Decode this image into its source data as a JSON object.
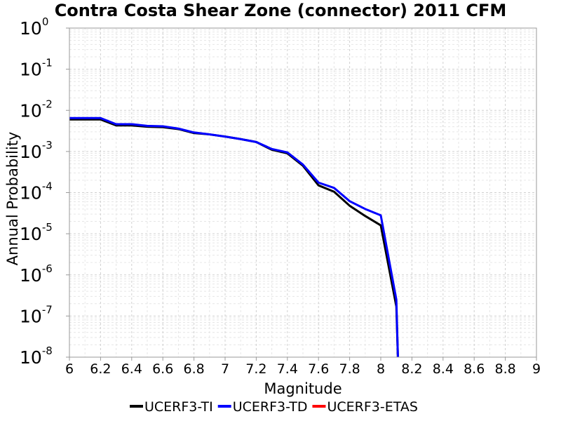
{
  "chart_data": {
    "type": "line",
    "title": "Contra Costa Shear Zone (connector) 2011 CFM",
    "xlabel": "Magnitude",
    "ylabel": "Annual Probability",
    "xlim": [
      6,
      9
    ],
    "ylim": [
      1e-08,
      1
    ],
    "yscale": "log",
    "grid": true,
    "legend_position": "bottom",
    "x_ticks": [
      "6",
      "6.2",
      "6.4",
      "6.6",
      "6.8",
      "7",
      "7.2",
      "7.4",
      "7.6",
      "7.8",
      "8",
      "8.2",
      "8.4",
      "8.6",
      "8.8",
      "9"
    ],
    "y_ticks": [
      {
        "base": "10",
        "exp": "0"
      },
      {
        "base": "10",
        "exp": "-1"
      },
      {
        "base": "10",
        "exp": "-2"
      },
      {
        "base": "10",
        "exp": "-3"
      },
      {
        "base": "10",
        "exp": "-4"
      },
      {
        "base": "10",
        "exp": "-5"
      },
      {
        "base": "10",
        "exp": "-6"
      },
      {
        "base": "10",
        "exp": "-7"
      },
      {
        "base": "10",
        "exp": "-8"
      }
    ],
    "series": [
      {
        "name": "UCERF3-TI",
        "color": "#000000",
        "x": [
          6.0,
          6.1,
          6.2,
          6.3,
          6.4,
          6.5,
          6.6,
          6.7,
          6.8,
          6.9,
          7.0,
          7.1,
          7.2,
          7.3,
          7.4,
          7.5,
          7.6,
          7.7,
          7.8,
          7.9,
          8.0,
          8.1,
          8.11
        ],
        "y": [
          0.006,
          0.006,
          0.006,
          0.0043,
          0.0043,
          0.004,
          0.0039,
          0.0035,
          0.0028,
          0.0026,
          0.0023,
          0.002,
          0.0017,
          0.0011,
          0.0009,
          0.00045,
          0.00015,
          0.000105,
          4.8e-05,
          2.7e-05,
          1.6e-05,
          1.7e-07,
          1e-08
        ]
      },
      {
        "name": "UCERF3-TD",
        "color": "#0000ff",
        "x": [
          6.0,
          6.1,
          6.2,
          6.3,
          6.4,
          6.5,
          6.6,
          6.7,
          6.8,
          6.9,
          7.0,
          7.1,
          7.2,
          7.3,
          7.4,
          7.5,
          7.6,
          7.7,
          7.8,
          7.9,
          8.0,
          8.1,
          8.11
        ],
        "y": [
          0.0065,
          0.0065,
          0.0065,
          0.0046,
          0.0046,
          0.0042,
          0.0041,
          0.0036,
          0.0029,
          0.0026,
          0.0023,
          0.002,
          0.0017,
          0.00115,
          0.00095,
          0.00048,
          0.000175,
          0.00013,
          6.2e-05,
          4e-05,
          2.8e-05,
          2.5e-07,
          1e-08
        ]
      },
      {
        "name": "UCERF3-ETAS",
        "color": "#ff0000",
        "x": [],
        "y": []
      }
    ]
  }
}
